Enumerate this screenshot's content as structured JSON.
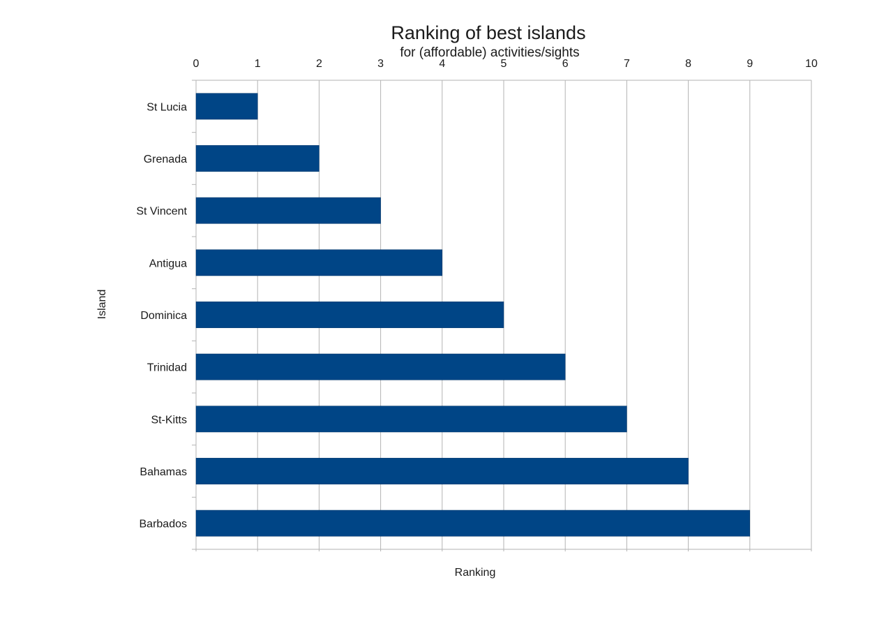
{
  "chart_data": {
    "type": "bar",
    "orientation": "horizontal",
    "title": "Ranking of best islands",
    "subtitle": "for (affordable) activities/sights",
    "xlabel": "Ranking",
    "ylabel": "Island",
    "categories": [
      "St Lucia",
      "Grenada",
      "St Vincent",
      "Antigua",
      "Dominica",
      "Trinidad",
      "St-Kitts",
      "Bahamas",
      "Barbados"
    ],
    "values": [
      1,
      2,
      3,
      4,
      5,
      6,
      7,
      8,
      9
    ],
    "xlim": [
      0,
      10
    ],
    "x_ticks": [
      "0",
      "1",
      "2",
      "3",
      "4",
      "5",
      "6",
      "7",
      "8",
      "9",
      "10"
    ],
    "x_tick_position": "top",
    "grid": true,
    "legend": "none",
    "bar_color": "#004586"
  }
}
